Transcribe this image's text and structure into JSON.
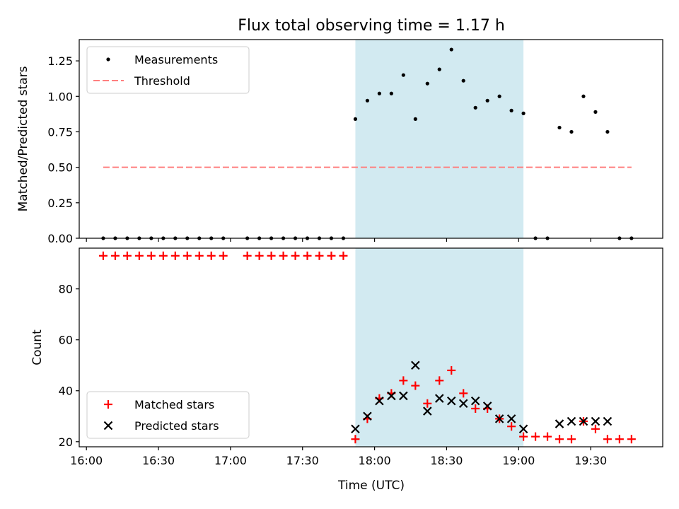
{
  "title": "Flux total observing time = 1.17 h",
  "xlabel": "Time (UTC)",
  "shaded_interval": [
    "17:52",
    "19:02"
  ],
  "colors": {
    "shade": "#add8e6",
    "measurements": "#000000",
    "threshold": "#ff7f7f",
    "matched": "#ff0000",
    "predicted": "#000000"
  },
  "chart_data": [
    {
      "type": "scatter",
      "ylabel": "Matched/Predicted stars",
      "ylim": [
        0,
        1.4
      ],
      "xlim": [
        "15:57",
        "20:00"
      ],
      "yticks": [
        0,
        0.25,
        0.5,
        0.75,
        1.0,
        1.25
      ],
      "ytick_labels": [
        "0.00",
        "0.25",
        "0.50",
        "0.75",
        "1.00",
        "1.25"
      ],
      "legend": {
        "position": "top-left",
        "entries": [
          "Measurements",
          "Threshold"
        ]
      },
      "threshold": {
        "name": "Threshold",
        "value": 0.5,
        "x_range": [
          "16:07",
          "19:47"
        ]
      },
      "series": [
        {
          "name": "Measurements",
          "x": [
            "16:07",
            "16:12",
            "16:17",
            "16:22",
            "16:27",
            "16:32",
            "16:37",
            "16:42",
            "16:47",
            "16:52",
            "16:57",
            "17:07",
            "17:12",
            "17:17",
            "17:22",
            "17:27",
            "17:32",
            "17:37",
            "17:42",
            "17:47",
            "17:52",
            "17:57",
            "18:02",
            "18:07",
            "18:12",
            "18:17",
            "18:22",
            "18:27",
            "18:32",
            "18:37",
            "18:42",
            "18:47",
            "18:52",
            "18:57",
            "19:02",
            "19:07",
            "19:12",
            "19:17",
            "19:22",
            "19:27",
            "19:32",
            "19:37",
            "19:42",
            "19:47"
          ],
          "y": [
            0,
            0,
            0,
            0,
            0,
            0,
            0,
            0,
            0,
            0,
            0,
            0,
            0,
            0,
            0,
            0,
            0,
            0,
            0,
            0,
            0.84,
            0.97,
            1.02,
            1.02,
            1.15,
            0.84,
            1.09,
            1.19,
            1.33,
            1.11,
            0.92,
            0.97,
            1.0,
            0.9,
            0.88,
            0,
            0,
            0.78,
            0.75,
            1.0,
            0.89,
            0.75,
            0,
            0
          ]
        }
      ]
    },
    {
      "type": "scatter",
      "ylabel": "Count",
      "ylim": [
        18,
        96
      ],
      "xlim": [
        "15:57",
        "20:00"
      ],
      "yticks": [
        20,
        40,
        60,
        80
      ],
      "ytick_labels": [
        "20",
        "40",
        "60",
        "80"
      ],
      "xticks": [
        "16:00",
        "16:30",
        "17:00",
        "17:30",
        "18:00",
        "18:30",
        "19:00",
        "19:30"
      ],
      "legend": {
        "position": "bottom-left",
        "entries": [
          "Matched stars",
          "Predicted stars"
        ]
      },
      "series": [
        {
          "name": "Matched stars",
          "marker": "+",
          "x": [
            "16:07",
            "16:12",
            "16:17",
            "16:22",
            "16:27",
            "16:32",
            "16:37",
            "16:42",
            "16:47",
            "16:52",
            "16:57",
            "17:07",
            "17:12",
            "17:17",
            "17:22",
            "17:27",
            "17:32",
            "17:37",
            "17:42",
            "17:47",
            "17:52",
            "17:57",
            "18:02",
            "18:07",
            "18:12",
            "18:17",
            "18:22",
            "18:27",
            "18:32",
            "18:37",
            "18:42",
            "18:47",
            "18:52",
            "18:57",
            "19:02",
            "19:07",
            "19:12",
            "19:17",
            "19:22",
            "19:27",
            "19:32",
            "19:37",
            "19:42",
            "19:47"
          ],
          "y": [
            93,
            93,
            93,
            93,
            93,
            93,
            93,
            93,
            93,
            93,
            93,
            93,
            93,
            93,
            93,
            93,
            93,
            93,
            93,
            93,
            21,
            29,
            37,
            39,
            44,
            42,
            35,
            44,
            48,
            39,
            33,
            33,
            29,
            26,
            22,
            22,
            22,
            21,
            21,
            28,
            25,
            21,
            21,
            21
          ]
        },
        {
          "name": "Predicted stars",
          "marker": "x",
          "x": [
            "17:52",
            "17:57",
            "18:02",
            "18:07",
            "18:12",
            "18:17",
            "18:22",
            "18:27",
            "18:32",
            "18:37",
            "18:42",
            "18:47",
            "18:52",
            "18:57",
            "19:02",
            "19:17",
            "19:22",
            "19:27",
            "19:32",
            "19:37"
          ],
          "y": [
            25,
            30,
            36,
            38,
            38,
            50,
            32,
            37,
            36,
            35,
            36,
            34,
            29,
            29,
            25,
            27,
            28,
            28,
            28,
            28
          ]
        }
      ]
    }
  ]
}
